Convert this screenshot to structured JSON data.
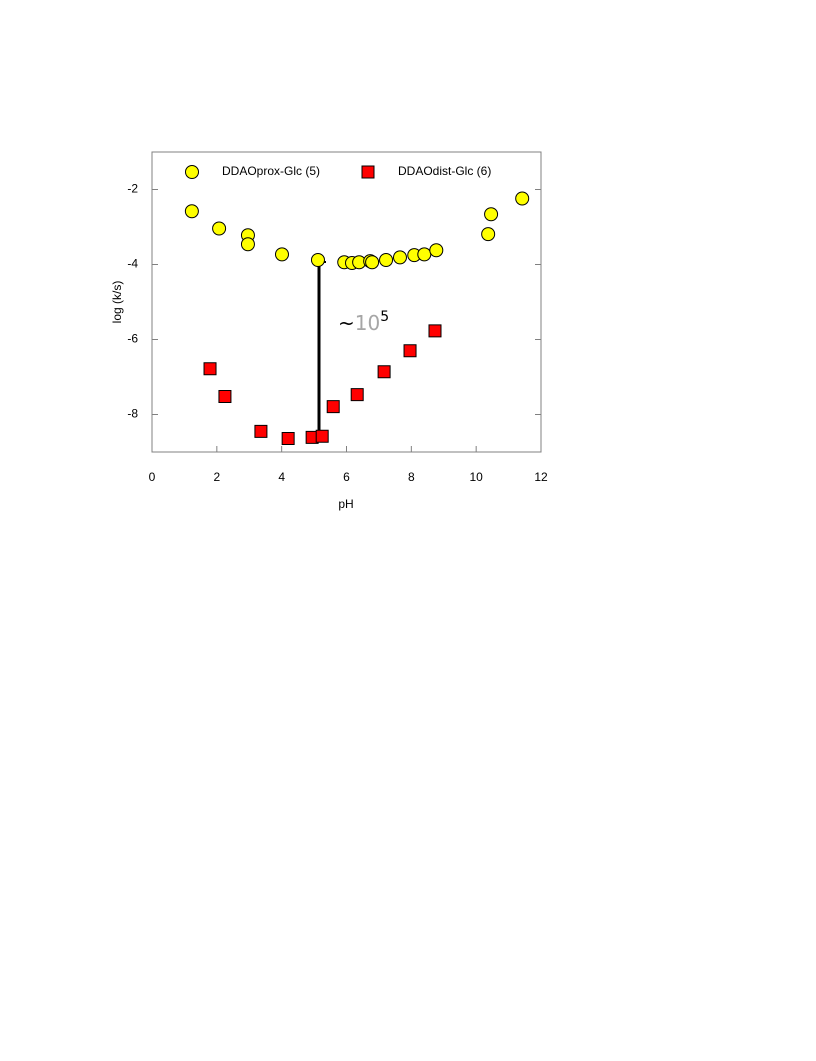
{
  "chart_data": {
    "type": "scatter",
    "xlabel": "pH",
    "ylabel": "log (k/s)",
    "xlim": [
      0,
      12
    ],
    "xticks": [
      0,
      2,
      4,
      6,
      8,
      10,
      12
    ],
    "ylim": [
      -9,
      -1
    ],
    "yticks": [
      -2,
      -4,
      -6,
      -8
    ],
    "legend": "top",
    "annotation": {
      "prefix": "~",
      "base": "10",
      "exponent": "5"
    },
    "series": [
      {
        "name": "DDAOprox-Glc (5)",
        "color": "#ffff00",
        "marker": "circle",
        "x": [
          1.23,
          2.07,
          2.96,
          2.96,
          4.01,
          5.12,
          5.93,
          6.17,
          6.39,
          6.73,
          6.79,
          7.22,
          7.65,
          8.09,
          8.4,
          8.77,
          10.37,
          10.46,
          11.42
        ],
        "values": [
          -2.58,
          -3.04,
          -3.22,
          -3.46,
          -3.73,
          -3.88,
          -3.94,
          -3.96,
          -3.94,
          -3.91,
          -3.94,
          -3.88,
          -3.81,
          -3.75,
          -3.73,
          -3.62,
          -3.19,
          -2.66,
          -2.24
        ]
      },
      {
        "name": "DDAOdist-Glc (6)",
        "color": "#ff0000",
        "marker": "square",
        "x": [
          1.79,
          2.25,
          3.36,
          4.2,
          4.94,
          5.25,
          5.59,
          6.33,
          7.16,
          7.96,
          8.73
        ],
        "values": [
          -6.78,
          -7.52,
          -8.45,
          -8.64,
          -8.61,
          -8.58,
          -7.79,
          -7.47,
          -6.86,
          -6.3,
          -5.77
        ]
      }
    ]
  }
}
